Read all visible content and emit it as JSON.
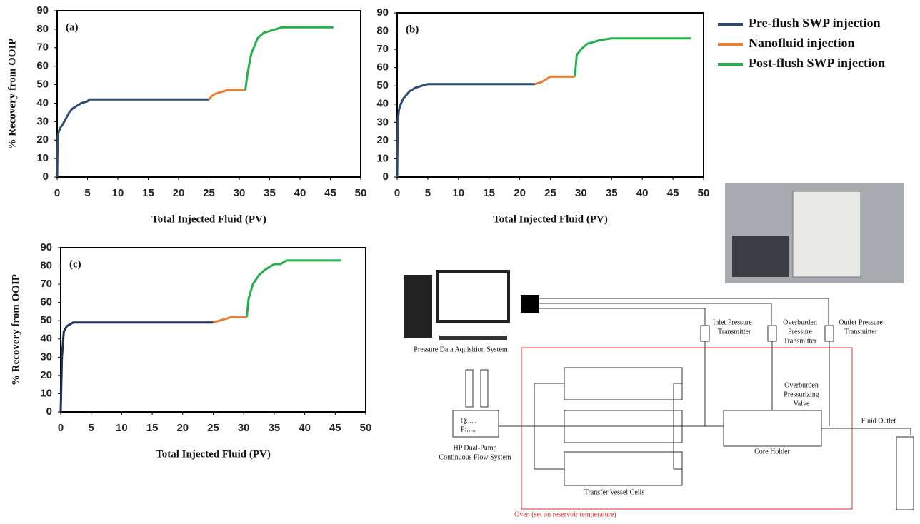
{
  "chart_data": [
    {
      "type": "line",
      "label": "(a)",
      "xlabel": "Total Injected Fluid (PV)",
      "ylabel": "% Recovery from OOIP",
      "xlim": [
        0,
        50
      ],
      "ylim": [
        0,
        90
      ],
      "xticks": [
        0,
        5,
        10,
        15,
        20,
        25,
        30,
        35,
        40,
        45,
        50
      ],
      "yticks": [
        0,
        10,
        20,
        30,
        40,
        50,
        60,
        70,
        80,
        90
      ],
      "series": [
        {
          "name": "Pre-flush SWP injection",
          "color": "#2e4a6e",
          "x": [
            0,
            0.1,
            0.3,
            0.6,
            1,
            1.5,
            2,
            2.5,
            3,
            4,
            5,
            5.3,
            10,
            15,
            20,
            25
          ],
          "values": [
            0,
            22,
            25,
            27,
            29,
            32,
            35,
            37,
            38,
            40,
            41,
            42,
            42,
            42,
            42,
            42
          ]
        },
        {
          "name": "Nanofluid injection",
          "color": "#ed7d31",
          "x": [
            25,
            25.5,
            26,
            27,
            28,
            29,
            30,
            31
          ],
          "values": [
            42,
            44,
            45,
            46,
            47,
            47,
            47,
            47
          ]
        },
        {
          "name": "Post-flush SWP injection",
          "color": "#21b04b",
          "x": [
            31,
            31.3,
            31.7,
            32,
            32.5,
            33,
            34,
            35,
            36,
            37,
            40,
            45.5
          ],
          "values": [
            47,
            55,
            62,
            67,
            71,
            75,
            78,
            79,
            80,
            81,
            81,
            81
          ]
        }
      ]
    },
    {
      "type": "line",
      "label": "(b)",
      "xlabel": "Total Injected Fluid (PV)",
      "xlim": [
        0,
        50
      ],
      "ylim": [
        0,
        90
      ],
      "xticks": [
        0,
        5,
        10,
        15,
        20,
        25,
        30,
        35,
        40,
        45,
        50
      ],
      "yticks": [
        0,
        10,
        20,
        30,
        40,
        50,
        60,
        70,
        80,
        90
      ],
      "series": [
        {
          "color": "#2e4a6e",
          "x": [
            0,
            0.1,
            0.3,
            0.6,
            1,
            1.5,
            2,
            3,
            4,
            5,
            10,
            15,
            20,
            22.5
          ],
          "values": [
            0,
            31,
            37,
            40,
            43,
            45,
            47,
            49,
            50,
            51,
            51,
            51,
            51,
            51
          ]
        },
        {
          "color": "#ed7d31",
          "x": [
            22.5,
            23.5,
            24.5,
            25,
            27,
            29
          ],
          "values": [
            51,
            52,
            54,
            55,
            55,
            55
          ]
        },
        {
          "color": "#21b04b",
          "x": [
            29,
            29.3,
            30,
            31,
            32,
            33,
            35,
            40,
            48
          ],
          "values": [
            55,
            67,
            70,
            73,
            74,
            75,
            76,
            76,
            76
          ]
        }
      ]
    },
    {
      "type": "line",
      "label": "(c)",
      "xlabel": "Total Injected Fluid (PV)",
      "ylabel": "% Recovery from OOIP",
      "xlim": [
        0,
        50
      ],
      "ylim": [
        0,
        90
      ],
      "xticks": [
        0,
        5,
        10,
        15,
        20,
        25,
        30,
        35,
        40,
        45,
        50
      ],
      "yticks": [
        0,
        10,
        20,
        30,
        40,
        50,
        60,
        70,
        80,
        90
      ],
      "series": [
        {
          "color": "#1f2f5a",
          "x": [
            0,
            0.2,
            0.5,
            1,
            1.5,
            2,
            5,
            10,
            20,
            25
          ],
          "values": [
            0,
            30,
            44,
            47,
            48,
            49,
            49,
            49,
            49,
            49
          ]
        },
        {
          "color": "#ed7d31",
          "x": [
            25,
            26,
            27,
            28,
            30,
            30.5
          ],
          "values": [
            49,
            50,
            51,
            52,
            52,
            52
          ]
        },
        {
          "color": "#21b04b",
          "x": [
            30.5,
            30.8,
            31.5,
            32.5,
            33.5,
            35,
            36,
            37,
            40,
            46
          ],
          "values": [
            52,
            62,
            70,
            75,
            78,
            81,
            81,
            83,
            83,
            83
          ]
        }
      ]
    }
  ],
  "diagram": {
    "daq": "Pressure Data Aquisition System",
    "inlet": [
      "Inlet Pressure",
      "Transmitter"
    ],
    "overburden": [
      "Overburden",
      "Pressure",
      "Transmitter"
    ],
    "outlet": [
      "Outlet Pressure",
      "Transmitter"
    ],
    "valve": [
      "Overburden",
      "Pressurizing",
      "Valve"
    ],
    "fluid_outlet": "Fluid Outlet",
    "pump_q": "Q:.....",
    "pump_p": "P:.....",
    "pump": [
      "HP Dual-Pump",
      "Continuous Flow System"
    ],
    "core": "Core Holder",
    "vessels": "Transfer Vessel Cells",
    "oven": "Oven (set on reservoir temperature)"
  }
}
